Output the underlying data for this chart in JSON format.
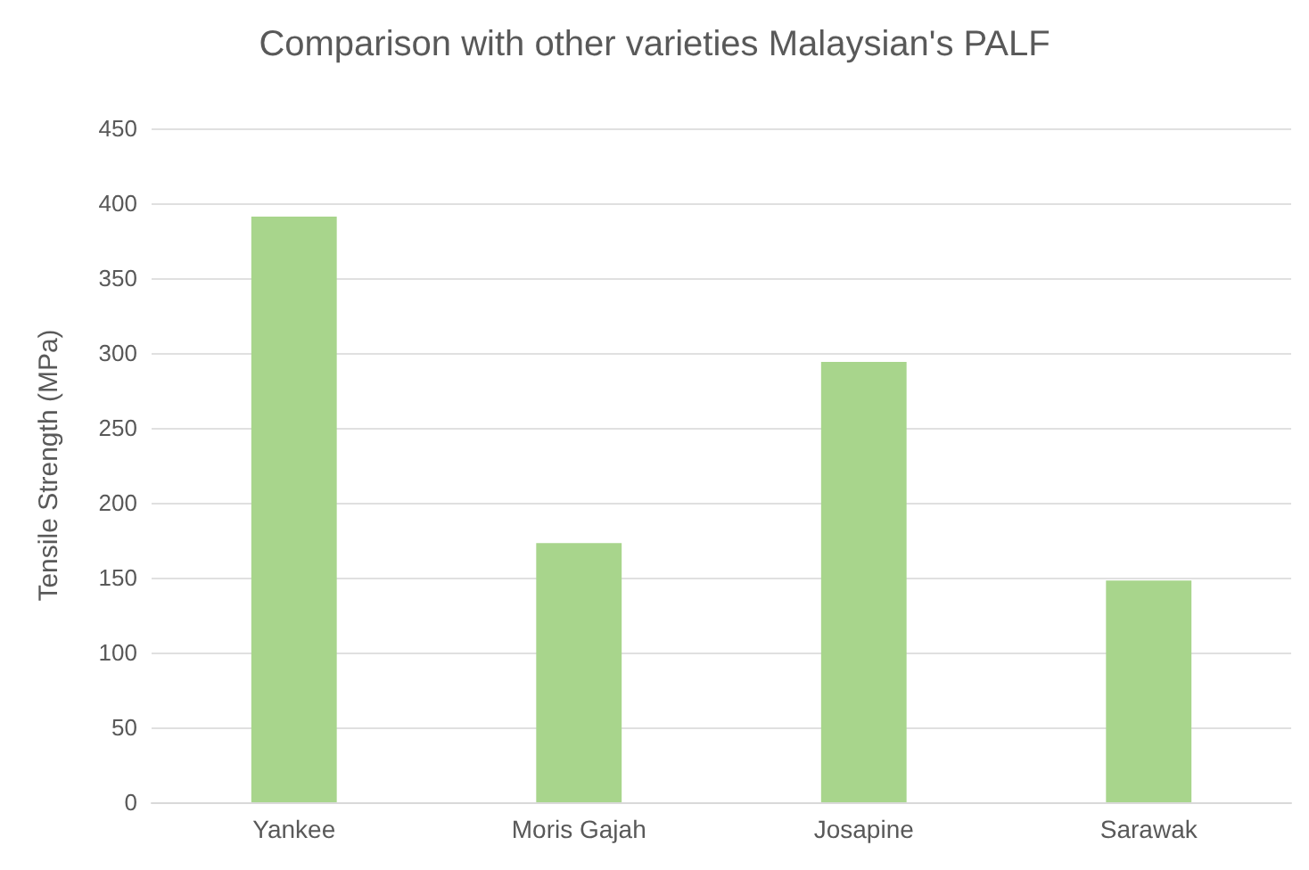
{
  "chart_data": {
    "type": "bar",
    "title": "Comparison with other varieties Malaysian's PALF",
    "ylabel": "Tensile Strength (MPa)",
    "categories": [
      "Yankee",
      "Moris Gajah",
      "Josapine",
      "Sarawak"
    ],
    "values": [
      391,
      173,
      294,
      148
    ],
    "color": "#a8d58c",
    "ylim": [
      0,
      450
    ],
    "yticks": [
      0,
      50,
      100,
      150,
      200,
      250,
      300,
      350,
      400,
      450
    ],
    "grid": "y"
  }
}
